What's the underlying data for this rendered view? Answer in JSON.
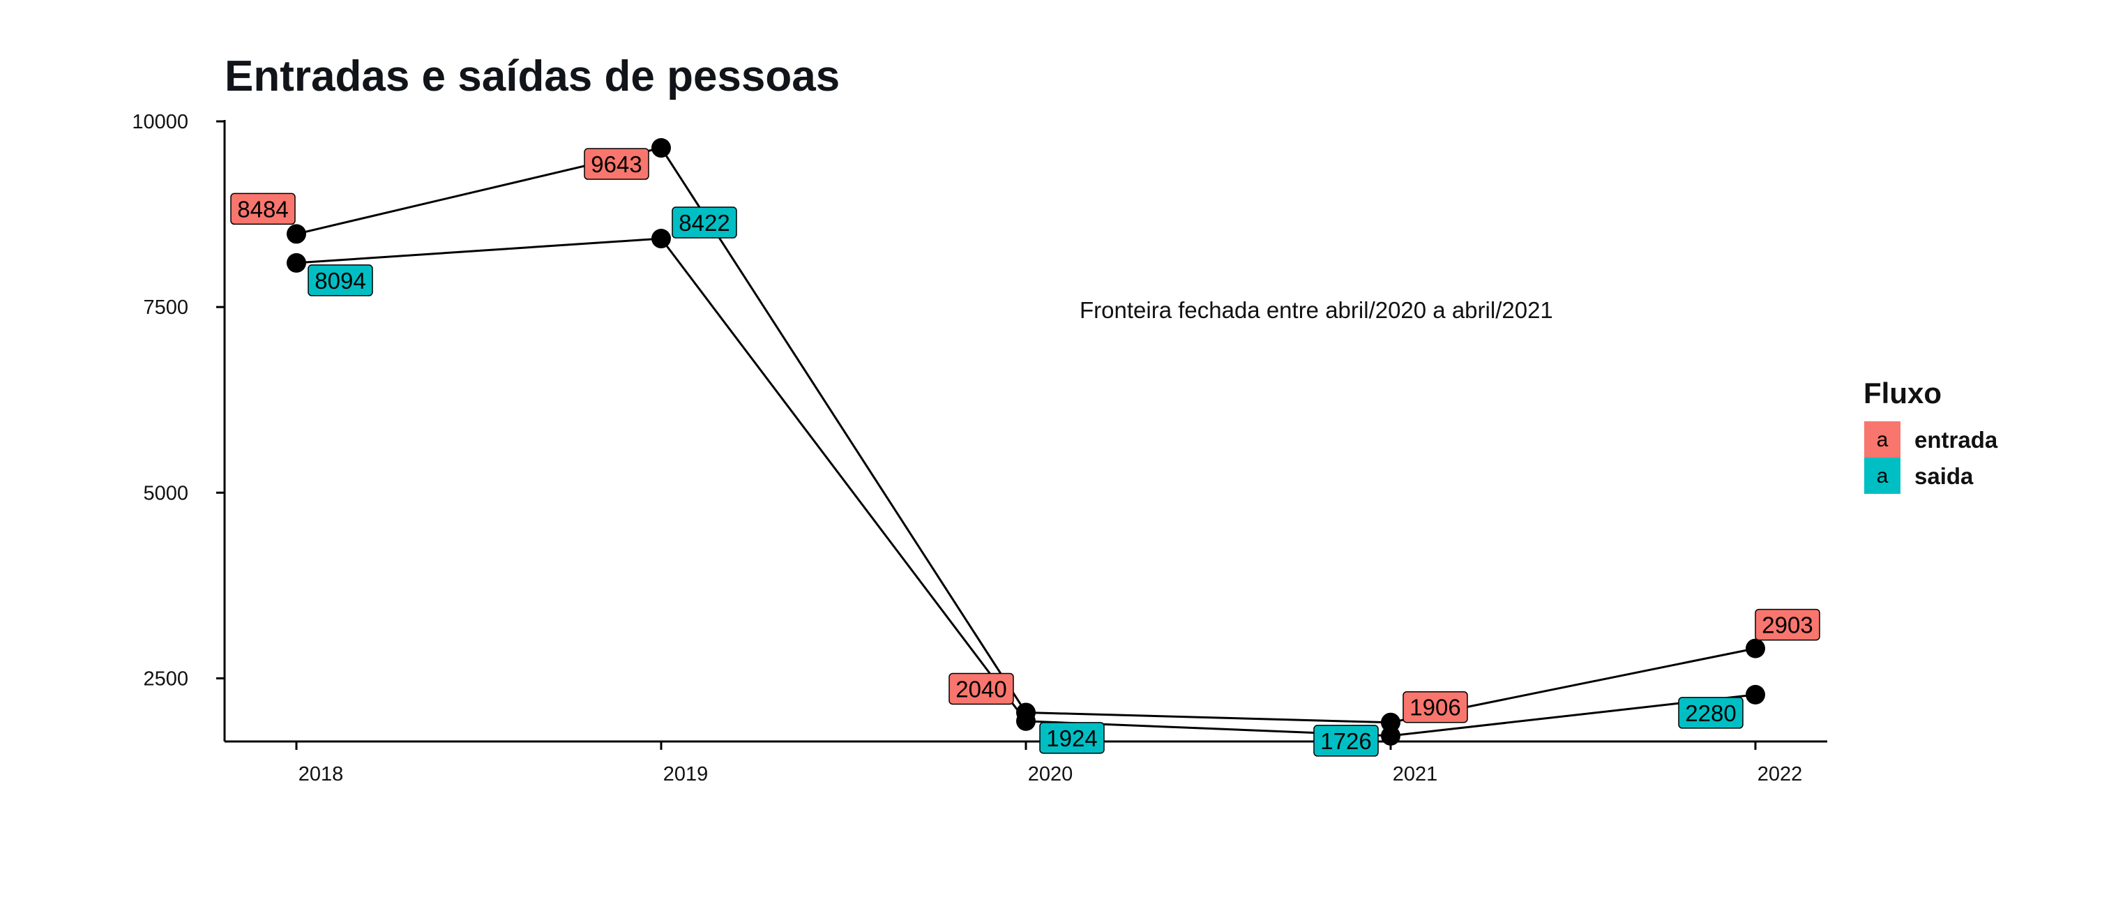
{
  "chart_data": {
    "type": "line",
    "title": "Entradas e saídas de pessoas",
    "x": [
      2018,
      2019,
      2020,
      2021,
      2022
    ],
    "x_tick_labels": [
      "2018",
      "2019",
      "2020",
      "2021",
      "2022"
    ],
    "y_ticks": [
      2500,
      5000,
      7500,
      10000
    ],
    "y_tick_labels": [
      "2500",
      "5000",
      "7500",
      "10000"
    ],
    "ylim": [
      1650,
      10000
    ],
    "grid": false,
    "series": [
      {
        "name": "entrada",
        "color": "#F8766D",
        "values": [
          8484,
          9643,
          2040,
          1906,
          2903
        ],
        "labels": [
          "8484",
          "9643",
          "2040",
          "1906",
          "2903"
        ]
      },
      {
        "name": "saida",
        "color": "#00BFC4",
        "values": [
          8094,
          8422,
          1924,
          1726,
          2280
        ],
        "labels": [
          "8094",
          "8422",
          "1924",
          "1726",
          "2280"
        ]
      }
    ],
    "annotation": "Fronteira fechada entre abril/2020 a abril/2021",
    "legend": {
      "title": "Fluxo",
      "position": "right",
      "key_glyph": "a"
    }
  }
}
